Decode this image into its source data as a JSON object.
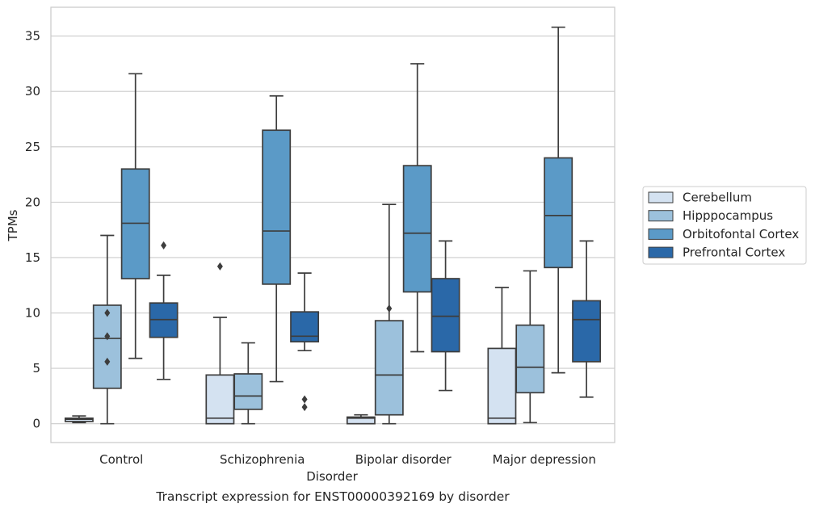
{
  "caption": "Transcript expression for ENST00000392169 by disorder",
  "chart_data": {
    "type": "box",
    "title": "",
    "xlabel": "Disorder",
    "ylabel": "TPMs",
    "ylim": [
      -1.7,
      37.6
    ],
    "yticks": [
      0,
      5,
      10,
      15,
      20,
      25,
      30,
      35
    ],
    "grid": "horizontal",
    "legend_position": "right",
    "categories": [
      "Control",
      "Schizophrenia",
      "Bipolar disorder",
      "Major depression"
    ],
    "series": [
      {
        "name": "Cerebellum",
        "color": "#d4e2f1",
        "boxes": [
          {
            "whislo": 0.1,
            "q1": 0.2,
            "med": 0.4,
            "q3": 0.5,
            "whishi": 0.7,
            "fliers": []
          },
          {
            "whislo": 0.0,
            "q1": 0.0,
            "med": 0.5,
            "q3": 4.4,
            "whishi": 9.6,
            "fliers": [
              14.2
            ]
          },
          {
            "whislo": 0.0,
            "q1": 0.0,
            "med": 0.5,
            "q3": 0.6,
            "whishi": 0.8,
            "fliers": []
          },
          {
            "whislo": 0.0,
            "q1": 0.0,
            "med": 0.5,
            "q3": 6.8,
            "whishi": 12.3,
            "fliers": []
          }
        ]
      },
      {
        "name": "Hipppocampus",
        "color": "#9cc1dc",
        "boxes": [
          {
            "whislo": 0.0,
            "q1": 3.2,
            "med": 7.7,
            "q3": 10.7,
            "whishi": 17.0,
            "fliers": [
              10.0,
              7.9,
              5.6
            ]
          },
          {
            "whislo": 0.0,
            "q1": 1.3,
            "med": 2.5,
            "q3": 4.5,
            "whishi": 7.3,
            "fliers": []
          },
          {
            "whislo": 0.0,
            "q1": 0.8,
            "med": 4.4,
            "q3": 9.3,
            "whishi": 19.8,
            "fliers": [
              10.4
            ]
          },
          {
            "whislo": 0.1,
            "q1": 2.8,
            "med": 5.1,
            "q3": 8.9,
            "whishi": 13.8,
            "fliers": []
          }
        ]
      },
      {
        "name": "Orbitofontal Cortex",
        "color": "#5b9ac7",
        "boxes": [
          {
            "whislo": 5.9,
            "q1": 13.1,
            "med": 18.1,
            "q3": 23.0,
            "whishi": 31.6,
            "fliers": []
          },
          {
            "whislo": 3.8,
            "q1": 12.6,
            "med": 17.4,
            "q3": 26.5,
            "whishi": 29.6,
            "fliers": []
          },
          {
            "whislo": 6.5,
            "q1": 11.9,
            "med": 17.2,
            "q3": 23.3,
            "whishi": 32.5,
            "fliers": []
          },
          {
            "whislo": 4.6,
            "q1": 14.1,
            "med": 18.8,
            "q3": 24.0,
            "whishi": 35.8,
            "fliers": []
          }
        ]
      },
      {
        "name": "Prefrontal Cortex",
        "color": "#2a68a8",
        "boxes": [
          {
            "whislo": 4.0,
            "q1": 7.8,
            "med": 9.4,
            "q3": 10.9,
            "whishi": 13.4,
            "fliers": [
              16.1
            ]
          },
          {
            "whislo": 6.6,
            "q1": 7.4,
            "med": 7.9,
            "q3": 10.1,
            "whishi": 13.6,
            "fliers": [
              2.2,
              1.5
            ]
          },
          {
            "whislo": 3.0,
            "q1": 6.5,
            "med": 9.7,
            "q3": 13.1,
            "whishi": 16.5,
            "fliers": []
          },
          {
            "whislo": 2.4,
            "q1": 5.6,
            "med": 9.4,
            "q3": 11.1,
            "whishi": 16.5,
            "fliers": []
          }
        ]
      }
    ]
  }
}
